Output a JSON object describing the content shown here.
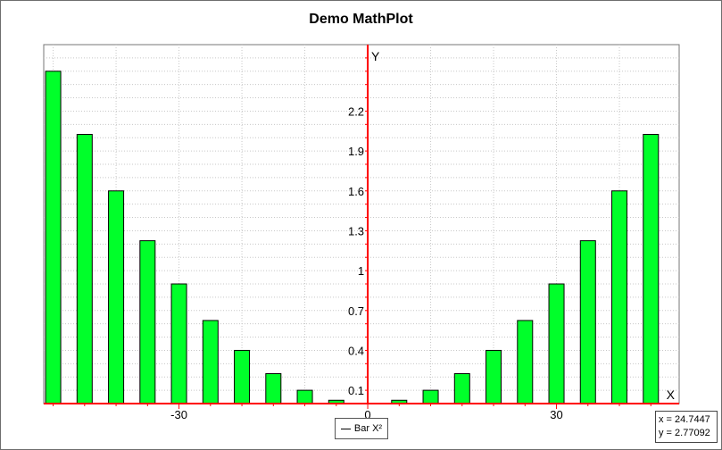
{
  "chart_data": {
    "type": "bar",
    "title": "Demo MathPlot",
    "xlabel": "X",
    "ylabel": "Y",
    "xlim": [
      -51.5,
      49.5
    ],
    "ylim": [
      0.0,
      2.7
    ],
    "x_ticks": [
      -30,
      0,
      30
    ],
    "x_tick_labels": [
      "-30",
      "0",
      "30"
    ],
    "y_ticks": [
      0.1,
      0.4,
      0.7,
      1.0,
      1.3,
      1.6,
      1.9,
      2.2
    ],
    "y_tick_labels": [
      "0.1",
      "0.4",
      "0.7",
      "1",
      "1.3",
      "1.6",
      "1.9",
      "2.2"
    ],
    "grid": true,
    "legend_position": "bottom-center",
    "series": [
      {
        "name": "Bar X²",
        "x": [
          -50,
          -45,
          -40,
          -35,
          -30,
          -25,
          -20,
          -15,
          -10,
          -5,
          5,
          10,
          15,
          20,
          25,
          30,
          35,
          40,
          45
        ],
        "values": [
          2.5,
          2.025,
          1.6,
          1.225,
          0.9,
          0.625,
          0.4,
          0.225,
          0.1,
          0.025,
          0.025,
          0.1,
          0.225,
          0.4,
          0.625,
          0.9,
          1.225,
          1.6,
          2.025
        ]
      }
    ]
  },
  "colors": {
    "bar_fill": "#00ff2a",
    "bar_stroke": "#000000",
    "axis": "#ff0000",
    "grid": "#c8c8c8"
  },
  "legend": {
    "label": "Bar X²"
  },
  "coords": {
    "x_text": "x = 24.7447",
    "y_text": "y = 2.77092"
  }
}
